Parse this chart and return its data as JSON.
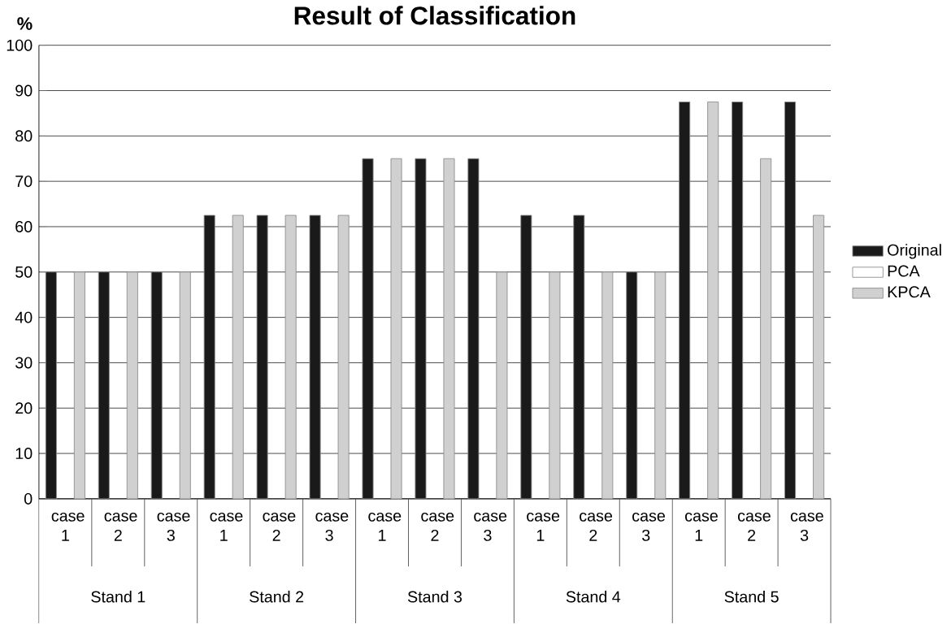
{
  "chart_data": {
    "type": "bar",
    "title": "Result of Classification",
    "ylabel": "%",
    "categories": [
      "case 1",
      "case 2",
      "case 3",
      "case 1",
      "case 2",
      "case 3",
      "case 1",
      "case 2",
      "case 3",
      "case 1",
      "case 2",
      "case 3",
      "case 1",
      "case 2",
      "case 3"
    ],
    "series": [
      {
        "name": "Original",
        "color": "#1a1a1a",
        "values": [
          50,
          50,
          50,
          62.5,
          62.5,
          62.5,
          75,
          75,
          75,
          62.5,
          62.5,
          50,
          87.5,
          87.5,
          87.5
        ]
      },
      {
        "name": "PCA",
        "color": "#ffffff",
        "values": [
          null,
          null,
          null,
          null,
          null,
          null,
          null,
          null,
          null,
          null,
          null,
          null,
          null,
          null,
          null
        ]
      },
      {
        "name": "KPCA",
        "color": "#d0d0d0",
        "values": [
          50,
          50,
          50,
          62.5,
          62.5,
          62.5,
          75,
          75,
          50,
          50,
          50,
          50,
          87.5,
          75,
          62.5
        ]
      }
    ],
    "annotations": [
      "Stand 1",
      "Stand 2",
      "Stand 3",
      "Stand 4",
      "Stand 5"
    ],
    "ylim": [
      0,
      100
    ],
    "yticks": [
      0,
      10,
      20,
      30,
      40,
      50,
      60,
      70,
      80,
      90,
      100
    ],
    "grid": "y",
    "legend": "right"
  }
}
